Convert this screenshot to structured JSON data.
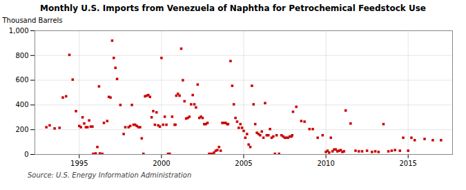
{
  "chart_data": {
    "type": "scatter",
    "title": "Monthly U.S. Imports from Venezuela of Naphtha for Petrochemical Feedstock Use",
    "ylabel": "Thousand Barrels",
    "annotations": [
      "Source: U.S. Energy Information Administration"
    ],
    "color": "#cc0000",
    "marker": "square",
    "grid": true,
    "xlim": [
      1992.3,
      2017.7
    ],
    "xticks": [
      1995,
      2000,
      2005,
      2010,
      2015
    ],
    "ylim": [
      0,
      1000
    ],
    "yticks": [
      0,
      200,
      400,
      600,
      800,
      {
        "value": 1000,
        "label": "1,000"
      }
    ],
    "x": [
      1993.0,
      1993.2,
      1993.5,
      1993.8,
      1994.0,
      1994.2,
      1994.4,
      1994.6,
      1994.8,
      1995.0,
      1995.1,
      1995.2,
      1995.3,
      1995.4,
      1995.5,
      1995.6,
      1995.7,
      1995.8,
      1995.85,
      1996.0,
      1996.1,
      1996.2,
      1996.25,
      1996.4,
      1996.5,
      1996.7,
      1996.8,
      1996.9,
      1997.0,
      1997.1,
      1997.2,
      1997.3,
      1997.5,
      1997.7,
      1997.8,
      1998.0,
      1998.1,
      1998.2,
      1998.3,
      1998.4,
      1998.5,
      1998.6,
      1998.7,
      1998.8,
      1998.9,
      1999.0,
      1999.1,
      1999.2,
      1999.3,
      1999.4,
      1999.5,
      1999.6,
      1999.7,
      1999.8,
      1999.9,
      2000.0,
      2000.1,
      2000.2,
      2000.3,
      2000.4,
      2000.5,
      2000.65,
      2000.8,
      2000.85,
      2000.9,
      2001.0,
      2001.1,
      2001.2,
      2001.3,
      2001.4,
      2001.5,
      2001.6,
      2001.7,
      2001.8,
      2001.9,
      2002.0,
      2002.1,
      2002.2,
      2002.3,
      2002.4,
      2002.5,
      2002.6,
      2002.7,
      2002.8,
      2002.9,
      2003.0,
      2003.1,
      2003.2,
      2003.3,
      2003.4,
      2003.5,
      2003.6,
      2003.7,
      2003.8,
      2003.9,
      2004.0,
      2004.05,
      2004.2,
      2004.3,
      2004.4,
      2004.5,
      2004.6,
      2004.7,
      2004.8,
      2004.9,
      2005.0,
      2005.1,
      2005.2,
      2005.3,
      2005.4,
      2005.5,
      2005.6,
      2005.7,
      2005.8,
      2005.9,
      2006.0,
      2006.1,
      2006.2,
      2006.3,
      2006.4,
      2006.5,
      2006.6,
      2006.7,
      2006.8,
      2006.9,
      2007.0,
      2007.15,
      2007.3,
      2007.4,
      2007.5,
      2007.6,
      2007.7,
      2007.8,
      2007.9,
      2007.95,
      2008.0,
      2008.2,
      2008.5,
      2008.7,
      2009.0,
      2009.2,
      2009.5,
      2009.8,
      2010.0,
      2010.1,
      2010.2,
      2010.3,
      2010.4,
      2010.5,
      2010.6,
      2010.7,
      2010.8,
      2010.9,
      2011.0,
      2011.1,
      2011.2,
      2011.5,
      2011.8,
      2012.0,
      2012.2,
      2012.5,
      2012.8,
      2013.0,
      2013.2,
      2013.5,
      2013.8,
      2014.0,
      2014.2,
      2014.5,
      2014.7,
      2015.0,
      2015.2,
      2015.4,
      2016.0,
      2016.5,
      2017.0
    ],
    "values": [
      220,
      235,
      210,
      215,
      460,
      470,
      805,
      605,
      350,
      230,
      220,
      300,
      250,
      220,
      220,
      275,
      225,
      225,
      5,
      8,
      60,
      550,
      8,
      5,
      255,
      270,
      465,
      460,
      920,
      780,
      700,
      610,
      400,
      165,
      220,
      220,
      230,
      400,
      240,
      240,
      230,
      220,
      220,
      130,
      5,
      470,
      475,
      480,
      465,
      300,
      350,
      240,
      340,
      235,
      225,
      780,
      240,
      305,
      240,
      5,
      5,
      305,
      240,
      240,
      475,
      490,
      475,
      855,
      600,
      430,
      290,
      295,
      305,
      405,
      480,
      405,
      380,
      565,
      295,
      305,
      295,
      245,
      245,
      255,
      5,
      5,
      5,
      15,
      30,
      35,
      60,
      30,
      255,
      255,
      255,
      245,
      245,
      755,
      555,
      405,
      295,
      265,
      215,
      245,
      215,
      190,
      135,
      165,
      80,
      60,
      555,
      405,
      245,
      175,
      165,
      155,
      185,
      135,
      415,
      155,
      155,
      205,
      135,
      145,
      5,
      155,
      5,
      155,
      145,
      135,
      135,
      135,
      145,
      145,
      155,
      345,
      385,
      270,
      265,
      205,
      205,
      135,
      155,
      20,
      30,
      15,
      135,
      25,
      40,
      40,
      25,
      30,
      35,
      20,
      25,
      355,
      250,
      30,
      25,
      25,
      30,
      20,
      25,
      20,
      245,
      25,
      30,
      35,
      30,
      135,
      30,
      135,
      115,
      125,
      115,
      115
    ]
  }
}
